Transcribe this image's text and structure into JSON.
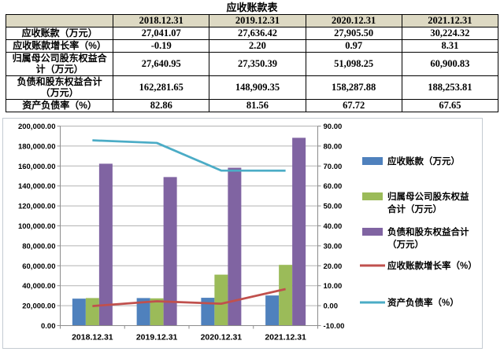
{
  "title": "应收账款表",
  "table": {
    "header_bg": "#DDD9C3",
    "header": [
      "",
      "2018.12.31",
      "2019.12.31",
      "2020.12.31",
      "2021.12.31"
    ],
    "rows": [
      {
        "label": "应收账款（万元）",
        "values": [
          "27,041.07",
          "27,636.42",
          "27,905.50",
          "30,224.32"
        ]
      },
      {
        "label": "应收账款增长率（%）",
        "values": [
          "-0.19",
          "2.20",
          "0.97",
          "8.31"
        ]
      },
      {
        "label": "归属母公司股东权益合计（万元）",
        "values": [
          "27,640.95",
          "27,350.39",
          "51,098.25",
          "60,900.83"
        ]
      },
      {
        "label": "负债和股东权益合计（万元）",
        "values": [
          "162,281.65",
          "148,909.35",
          "158,287.88",
          "188,253.81"
        ]
      },
      {
        "label": "资产负债率（%）",
        "values": [
          "82.86",
          "81.56",
          "67.72",
          "67.65"
        ]
      }
    ]
  },
  "chart_data": {
    "type": "bar",
    "subtype": "combo-bar-line-dual-axis",
    "categories": [
      "2018.12.31",
      "2019.12.31",
      "2020.12.31",
      "2021.12.31"
    ],
    "series": [
      {
        "name": "应收账款（万元）",
        "kind": "bar",
        "axis": "left",
        "color": "#4F81BD",
        "values": [
          27041.07,
          27636.42,
          27905.5,
          30224.32
        ],
        "legend_lines": [
          "应收账款（万元）"
        ]
      },
      {
        "name": "归属母公司股东权益合计（万元）",
        "kind": "bar",
        "axis": "left",
        "color": "#9BBB59",
        "values": [
          27640.95,
          27350.39,
          51098.25,
          60900.83
        ],
        "legend_lines": [
          "归属母公司股东权益",
          "合计（万元）"
        ]
      },
      {
        "name": "负债和股东权益合计（万元）",
        "kind": "bar",
        "axis": "left",
        "color": "#8064A2",
        "values": [
          162281.65,
          148909.35,
          158287.88,
          188253.81
        ],
        "legend_lines": [
          "负债和股东权益合计",
          "（万元）"
        ]
      },
      {
        "name": "应收账款增长率（%）",
        "kind": "line",
        "axis": "right",
        "color": "#C0504D",
        "values": [
          -0.19,
          2.2,
          0.97,
          8.31
        ],
        "legend_lines": [
          "应收账款增长率（%）"
        ]
      },
      {
        "name": "资产负债率（%）",
        "kind": "line",
        "axis": "right",
        "color": "#4BACC6",
        "values": [
          82.86,
          81.56,
          67.72,
          67.65
        ],
        "legend_lines": [
          "资产负债率（%）"
        ]
      }
    ],
    "left_axis": {
      "min": 0,
      "max": 200000,
      "step": 20000,
      "tick_labels": [
        "200,000.00",
        "180,000.00",
        "160,000.00",
        "140,000.00",
        "120,000.00",
        "100,000.00",
        "80,000.00",
        "60,000.00",
        "40,000.00",
        "20,000.00",
        "0.00"
      ]
    },
    "right_axis": {
      "min": -10,
      "max": 90,
      "step": 10,
      "tick_labels": [
        "90.00",
        "80.00",
        "70.00",
        "60.00",
        "50.00",
        "40.00",
        "30.00",
        "20.00",
        "10.00",
        "0.00",
        "-10.00"
      ]
    },
    "legend_position": "right",
    "grid": true,
    "colors": {
      "grid": "#B3B3B3",
      "axis": "#8C8C8C",
      "border": "#C4CBD2",
      "text": "#000000"
    }
  }
}
